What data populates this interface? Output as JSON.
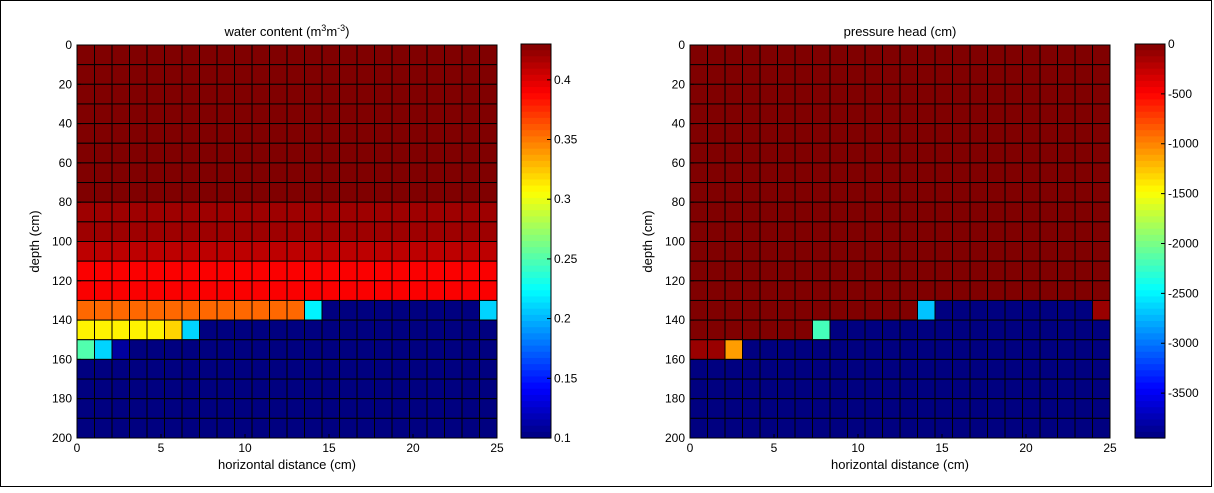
{
  "chart_data": [
    {
      "type": "heatmap",
      "title": "water content (m³m⁻³)",
      "title_parts": [
        "water content (m",
        "3",
        "m",
        "-3",
        ")"
      ],
      "xlabel": "horizontal distance (cm)",
      "ylabel": "depth (cm)",
      "xlim": [
        0,
        25
      ],
      "ylim": [
        0,
        200
      ],
      "y_reversed": true,
      "xticks": [
        0,
        5,
        10,
        15,
        20,
        25
      ],
      "yticks": [
        0,
        20,
        40,
        60,
        80,
        100,
        120,
        140,
        160,
        180,
        200
      ],
      "colormap": "jet",
      "colorbar": {
        "min": 0.1,
        "max": 0.43,
        "ticks": [
          0.1,
          0.15,
          0.2,
          0.25,
          0.3,
          0.35,
          0.4
        ]
      },
      "grid": {
        "columns": 24,
        "rows": 20,
        "cell_width_cm": 1.0417,
        "cell_height_cm": 10
      },
      "rows": [
        {
          "row": 0,
          "default": 0.43
        },
        {
          "row": 1,
          "default": 0.43
        },
        {
          "row": 2,
          "default": 0.43
        },
        {
          "row": 3,
          "default": 0.43
        },
        {
          "row": 4,
          "default": 0.43
        },
        {
          "row": 5,
          "default": 0.43
        },
        {
          "row": 6,
          "default": 0.43
        },
        {
          "row": 7,
          "default": 0.43
        },
        {
          "row": 8,
          "default": 0.42
        },
        {
          "row": 9,
          "default": 0.42
        },
        {
          "row": 10,
          "default": 0.41
        },
        {
          "row": 11,
          "default": 0.39
        },
        {
          "row": 12,
          "default": 0.39
        },
        {
          "row": 13,
          "default": 0.1,
          "cells": [
            [
              0,
              12,
              0.355
            ],
            [
              13,
              13,
              0.22
            ]
          ],
          "end": [
            [
              23,
              23,
              0.21
            ]
          ]
        },
        {
          "row": 14,
          "default": 0.1,
          "cells": [
            [
              0,
              4,
              0.31
            ],
            [
              5,
              5,
              0.32
            ],
            [
              6,
              6,
              0.21
            ]
          ]
        },
        {
          "row": 15,
          "default": 0.1,
          "cells": [
            [
              0,
              0,
              0.25
            ],
            [
              1,
              1,
              0.21
            ],
            [
              2,
              2,
              0.11
            ]
          ]
        },
        {
          "row": 16,
          "default": 0.1
        },
        {
          "row": 17,
          "default": 0.1
        },
        {
          "row": 18,
          "default": 0.1
        },
        {
          "row": 19,
          "default": 0.1
        }
      ]
    },
    {
      "type": "heatmap",
      "title": "pressure head (cm)",
      "xlabel": "horizontal distance (cm)",
      "ylabel": "depth (cm)",
      "xlim": [
        0,
        25
      ],
      "ylim": [
        0,
        200
      ],
      "y_reversed": true,
      "xticks": [
        0,
        5,
        10,
        15,
        20,
        25
      ],
      "yticks": [
        0,
        20,
        40,
        60,
        80,
        100,
        120,
        140,
        160,
        180,
        200
      ],
      "colormap": "jet",
      "colorbar": {
        "min": -3950,
        "max": 0,
        "ticks": [
          0,
          -500,
          -1000,
          -1500,
          -2000,
          -2500,
          -3000,
          -3500
        ]
      },
      "grid": {
        "columns": 24,
        "rows": 20,
        "cell_width_cm": 1.0417,
        "cell_height_cm": 10
      },
      "rows": [
        {
          "row": 0,
          "default": 0
        },
        {
          "row": 1,
          "default": 0
        },
        {
          "row": 2,
          "default": 0
        },
        {
          "row": 3,
          "default": 0
        },
        {
          "row": 4,
          "default": 0
        },
        {
          "row": 5,
          "default": 0
        },
        {
          "row": 6,
          "default": 0
        },
        {
          "row": 7,
          "default": 0
        },
        {
          "row": 8,
          "default": 0
        },
        {
          "row": 9,
          "default": 0
        },
        {
          "row": 10,
          "default": 0
        },
        {
          "row": 11,
          "default": 0
        },
        {
          "row": 12,
          "default": 0
        },
        {
          "row": 13,
          "default": -3950,
          "cells": [
            [
              0,
              12,
              0
            ],
            [
              13,
              13,
              -2700
            ]
          ],
          "end": [
            [
              23,
              23,
              -100
            ]
          ]
        },
        {
          "row": 14,
          "default": -3950,
          "cells": [
            [
              0,
              6,
              0
            ],
            [
              7,
              7,
              -2200
            ]
          ]
        },
        {
          "row": 15,
          "default": -3950,
          "cells": [
            [
              0,
              1,
              -100
            ],
            [
              2,
              2,
              -1100
            ]
          ]
        },
        {
          "row": 16,
          "default": -3950
        },
        {
          "row": 17,
          "default": -3950
        },
        {
          "row": 18,
          "default": -3950
        },
        {
          "row": 19,
          "default": -3950
        }
      ]
    }
  ]
}
